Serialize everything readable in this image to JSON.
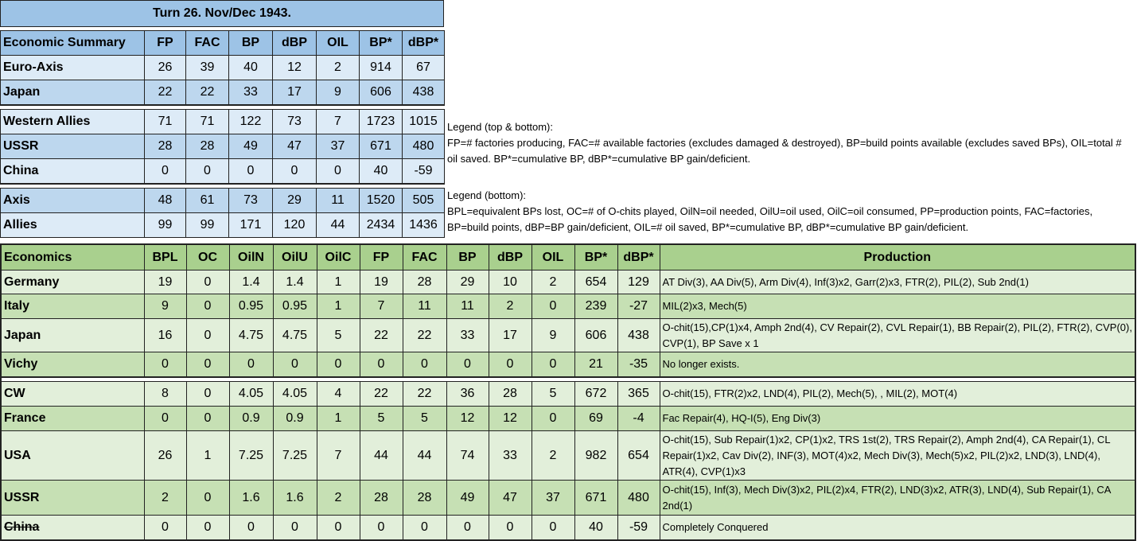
{
  "title": "Turn 26.  Nov/Dec 1943.",
  "summary": {
    "headers": [
      "Economic Summary",
      "FP",
      "FAC",
      "BP",
      "dBP",
      "OIL",
      "BP*",
      "dBP*"
    ],
    "groups": [
      [
        {
          "name": "Euro-Axis",
          "values": [
            "26",
            "39",
            "40",
            "12",
            "2",
            "914",
            "67"
          ],
          "shade": "l"
        },
        {
          "name": "Japan",
          "values": [
            "22",
            "22",
            "33",
            "17",
            "9",
            "606",
            "438"
          ],
          "shade": "d"
        }
      ],
      [
        {
          "name": "Western Allies",
          "values": [
            "71",
            "71",
            "122",
            "73",
            "7",
            "1723",
            "1015"
          ],
          "shade": "l"
        },
        {
          "name": "USSR",
          "values": [
            "28",
            "28",
            "49",
            "47",
            "37",
            "671",
            "480"
          ],
          "shade": "d"
        },
        {
          "name": "China",
          "values": [
            "0",
            "0",
            "0",
            "0",
            "0",
            "40",
            "-59"
          ],
          "shade": "l"
        }
      ],
      [
        {
          "name": "Axis",
          "values": [
            "48",
            "61",
            "73",
            "29",
            "11",
            "1520",
            "505"
          ],
          "shade": "d"
        },
        {
          "name": "Allies",
          "values": [
            "99",
            "99",
            "171",
            "120",
            "44",
            "2434",
            "1436"
          ],
          "shade": "l"
        }
      ]
    ]
  },
  "legend_top": {
    "title": "Legend (top & bottom):",
    "text": "FP=# factories producing, FAC=# available factories (excludes damaged & destroyed), BP=build points available (excludes saved BPs), OIL=total # oil saved. BP*=cumulative BP, dBP*=cumulative BP gain/deficient."
  },
  "legend_bottom": {
    "title": "Legend (bottom):",
    "text": "BPL=equivalent BPs lost, OC=# of O-chits played, OilN=oil needed, OilU=oil used, OilC=oil consumed, PP=production points, FAC=factories, BP=build points, dBP=BP gain/deficient, OIL=# oil saved, BP*=cumulative BP, dBP*=cumulative BP gain/deficient."
  },
  "economics": {
    "headers": [
      "Economics",
      "BPL",
      "OC",
      "OilN",
      "OilU",
      "OilC",
      "FP",
      "FAC",
      "BP",
      "dBP",
      "OIL",
      "BP*",
      "dBP*",
      "Production"
    ],
    "groups": [
      [
        {
          "name": "Germany",
          "values": [
            "19",
            "0",
            "1.4",
            "1.4",
            "1",
            "19",
            "28",
            "29",
            "10",
            "2",
            "654",
            "129"
          ],
          "production": "AT Div(3), AA Div(5), Arm Div(4), Inf(3)x2, Garr(2)x3, FTR(2), PIL(2), Sub 2nd(1)",
          "shade": "l"
        },
        {
          "name": "Italy",
          "values": [
            "9",
            "0",
            "0.95",
            "0.95",
            "1",
            "7",
            "11",
            "11",
            "2",
            "0",
            "239",
            "-27"
          ],
          "production": "MIL(2)x3, Mech(5)",
          "shade": "d"
        },
        {
          "name": "Japan",
          "values": [
            "16",
            "0",
            "4.75",
            "4.75",
            "5",
            "22",
            "22",
            "33",
            "17",
            "9",
            "606",
            "438"
          ],
          "production": "O-chit(15),CP(1)x4, Amph 2nd(4), CV Repair(2), CVL Repair(1), BB Repair(2), PIL(2), FTR(2), CVP(0), CVP(1), BP Save x 1",
          "shade": "l"
        },
        {
          "name": "Vichy",
          "values": [
            "0",
            "0",
            "0",
            "0",
            "0",
            "0",
            "0",
            "0",
            "0",
            "0",
            "21",
            "-35"
          ],
          "production": "No longer exists.",
          "shade": "d"
        }
      ],
      [
        {
          "name": "CW",
          "values": [
            "8",
            "0",
            "4.05",
            "4.05",
            "4",
            "22",
            "22",
            "36",
            "28",
            "5",
            "672",
            "365"
          ],
          "production": "O-chit(15), FTR(2)x2, LND(4), PIL(2), Mech(5), , MIL(2), MOT(4)",
          "shade": "l"
        },
        {
          "name": "France",
          "values": [
            "0",
            "0",
            "0.9",
            "0.9",
            "1",
            "5",
            "5",
            "12",
            "12",
            "0",
            "69",
            "-4"
          ],
          "production": "Fac Repair(4), HQ-I(5), Eng Div(3)",
          "shade": "d"
        },
        {
          "name": "USA",
          "values": [
            "26",
            "1",
            "7.25",
            "7.25",
            "7",
            "44",
            "44",
            "74",
            "33",
            "2",
            "982",
            "654"
          ],
          "production": "O-chit(15), Sub Repair(1)x2, CP(1)x2, TRS 1st(2), TRS Repair(2), Amph 2nd(4), CA Repair(1), CL Repair(1)x2, Cav Div(2), INF(3), MOT(4)x2, Mech Div(3), Mech(5)x2, PIL(2)x2, LND(3), LND(4), ATR(4), CVP(1)x3",
          "shade": "l"
        },
        {
          "name": "USSR",
          "values": [
            "2",
            "0",
            "1.6",
            "1.6",
            "2",
            "28",
            "28",
            "49",
            "47",
            "37",
            "671",
            "480"
          ],
          "production": "O-chit(15), Inf(3), Mech Div(3)x2, PIL(2)x4, FTR(2), LND(3)x2, ATR(3), LND(4), Sub Repair(1), CA 2nd(1)",
          "shade": "d"
        },
        {
          "name": "China",
          "values": [
            "0",
            "0",
            "0",
            "0",
            "0",
            "0",
            "0",
            "0",
            "0",
            "0",
            "40",
            "-59"
          ],
          "production": "Completely Conquered",
          "shade": "l",
          "struck": true
        }
      ]
    ]
  },
  "colors": {
    "summary_header": "#9dc3e6",
    "summary_light": "#ddebf7",
    "summary_dark": "#bdd7ee",
    "econ_header": "#a9d08e",
    "econ_light": "#e2efda",
    "econ_dark": "#c6e0b4"
  }
}
